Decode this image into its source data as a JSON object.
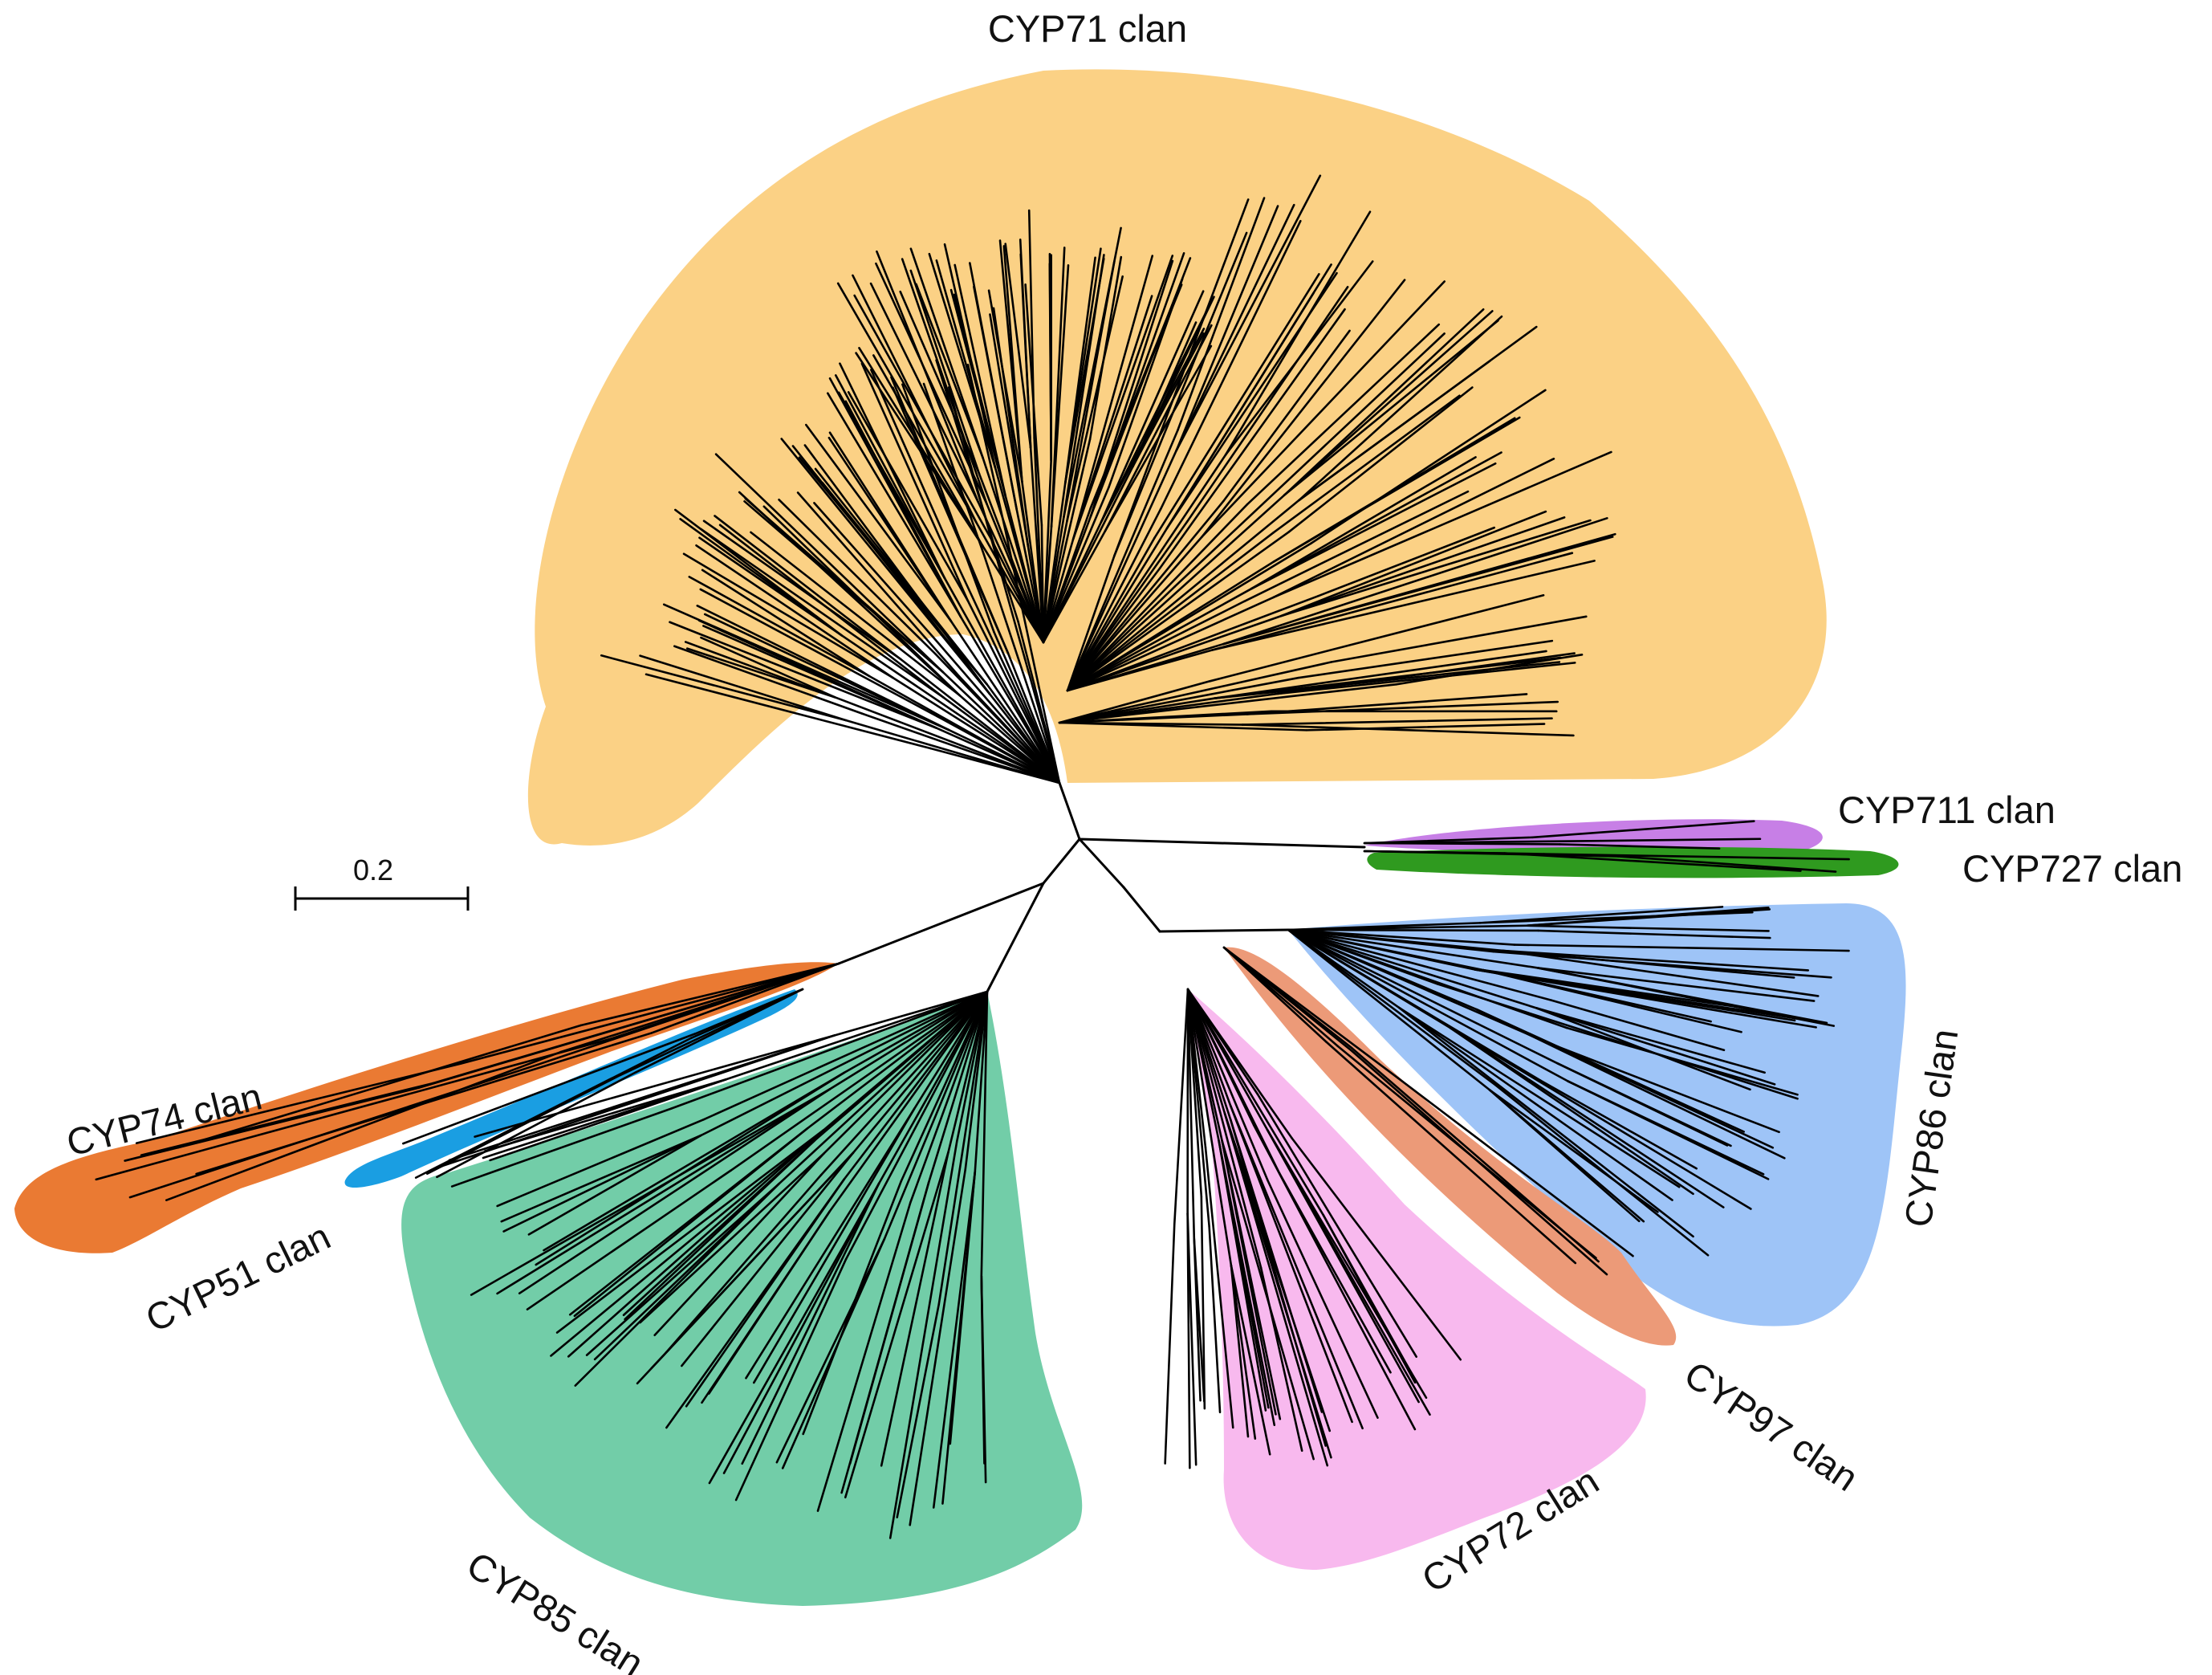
{
  "figure": {
    "type": "unrooted phylogenetic tree",
    "scale_bar": {
      "label": "0.2",
      "value": 0.2
    },
    "clans": [
      {
        "id": "cyp71",
        "label": "CYP71 clan",
        "color": "#fbd185"
      },
      {
        "id": "cyp711",
        "label": "CYP711 clan",
        "color": "#c77fe6"
      },
      {
        "id": "cyp727",
        "label": "CYP727 clan",
        "color": "#2f9a1f"
      },
      {
        "id": "cyp86",
        "label": "CYP86 clan",
        "color": "#9ec4f7"
      },
      {
        "id": "cyp97",
        "label": "CYP97 clan",
        "color": "#ec9a78"
      },
      {
        "id": "cyp72",
        "label": "CYP72 clan",
        "color": "#f8b9ee"
      },
      {
        "id": "cyp85",
        "label": "CYP85 clan",
        "color": "#72cda8"
      },
      {
        "id": "cyp51",
        "label": "CYP51 clan",
        "color": "#1a9ee2"
      },
      {
        "id": "cyp74",
        "label": "CYP74 clan",
        "color": "#ea7a33"
      }
    ]
  }
}
